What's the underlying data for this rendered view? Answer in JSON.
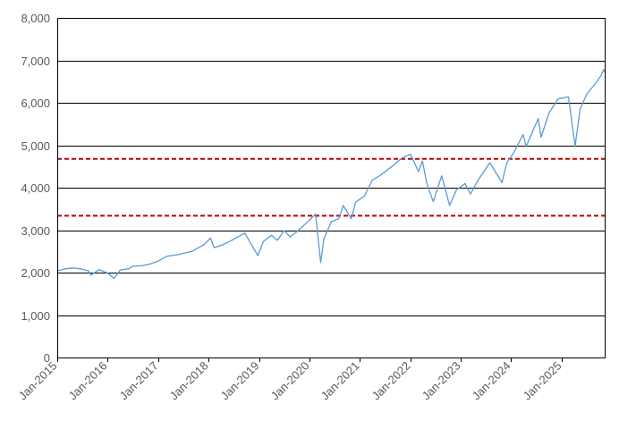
{
  "chart_data": {
    "type": "line",
    "title": "",
    "xlabel": "",
    "ylabel": "",
    "ylim": [
      0,
      8000
    ],
    "xlim": [
      "2015-01-01",
      "2025-11-15"
    ],
    "y_ticks": [
      0,
      1000,
      2000,
      3000,
      4000,
      5000,
      6000,
      7000,
      8000
    ],
    "y_tick_labels": [
      "0",
      "1,000",
      "2,000",
      "3,000",
      "4,000",
      "5,000",
      "6,000",
      "7,000",
      "8,000"
    ],
    "x_ticks": [
      "2015-01-01",
      "2016-01-01",
      "2017-01-01",
      "2018-01-01",
      "2019-01-01",
      "2020-01-01",
      "2021-01-01",
      "2022-01-01",
      "2023-01-01",
      "2024-01-01",
      "2025-01-01"
    ],
    "x_tick_labels": [
      "Jan-2015",
      "Jan-2016",
      "Jan-2017",
      "Jan-2018",
      "Jan-2019",
      "Jan-2020",
      "Jan-2021",
      "Jan-2022",
      "Jan-2023",
      "Jan-2024",
      "Jan-2025"
    ],
    "grid": "horizontal",
    "legend": "none",
    "colors": {
      "series": "#5b9bd5",
      "reference": "#c00000",
      "grid": "#000000"
    },
    "reference_lines": [
      {
        "y": 4680,
        "style": "dashed"
      },
      {
        "y": 3340,
        "style": "dashed"
      }
    ],
    "series": [
      {
        "dates": [
          "2015-01-01",
          "2015-03-01",
          "2015-05-01",
          "2015-07-01",
          "2015-08-15",
          "2015-09-01",
          "2015-11-01",
          "2016-01-01",
          "2016-02-15",
          "2016-04-01",
          "2016-06-01",
          "2016-07-01",
          "2016-09-01",
          "2016-11-01",
          "2017-01-01",
          "2017-03-01",
          "2017-06-01",
          "2017-09-01",
          "2017-12-01",
          "2018-01-15",
          "2018-02-10",
          "2018-04-01",
          "2018-06-01",
          "2018-09-20",
          "2018-12-24",
          "2019-02-01",
          "2019-04-01",
          "2019-05-15",
          "2019-07-01",
          "2019-08-15",
          "2019-10-01",
          "2019-12-01",
          "2020-02-15",
          "2020-03-23",
          "2020-04-15",
          "2020-06-08",
          "2020-08-01",
          "2020-09-02",
          "2020-10-30",
          "2020-12-01",
          "2021-02-01",
          "2021-04-01",
          "2021-06-01",
          "2021-09-01",
          "2021-11-01",
          "2022-01-03",
          "2022-03-01",
          "2022-03-29",
          "2022-05-01",
          "2022-06-16",
          "2022-08-16",
          "2022-10-12",
          "2022-12-01",
          "2023-02-01",
          "2023-03-13",
          "2023-05-01",
          "2023-07-31",
          "2023-10-27",
          "2023-12-01",
          "2024-01-15",
          "2024-03-28",
          "2024-04-19",
          "2024-07-15",
          "2024-08-05",
          "2024-10-01",
          "2024-12-06",
          "2025-02-19",
          "2025-04-08",
          "2025-05-15",
          "2025-07-01",
          "2025-09-01",
          "2025-10-15",
          "2025-11-01",
          "2025-11-10"
        ],
        "values": [
          2040,
          2090,
          2110,
          2080,
          2040,
          1940,
          2070,
          1990,
          1860,
          2060,
          2090,
          2150,
          2160,
          2200,
          2270,
          2380,
          2430,
          2500,
          2660,
          2810,
          2590,
          2640,
          2730,
          2930,
          2400,
          2730,
          2880,
          2760,
          2990,
          2840,
          2960,
          3140,
          3380,
          2240,
          2800,
          3200,
          3270,
          3580,
          3270,
          3660,
          3800,
          4180,
          4300,
          4530,
          4700,
          4790,
          4380,
          4630,
          4100,
          3670,
          4280,
          3580,
          3950,
          4100,
          3850,
          4150,
          4590,
          4120,
          4590,
          4800,
          5250,
          4970,
          5630,
          5190,
          5760,
          6090,
          6140,
          4980,
          5860,
          6200,
          6450,
          6650,
          6780,
          6720
        ]
      }
    ]
  }
}
